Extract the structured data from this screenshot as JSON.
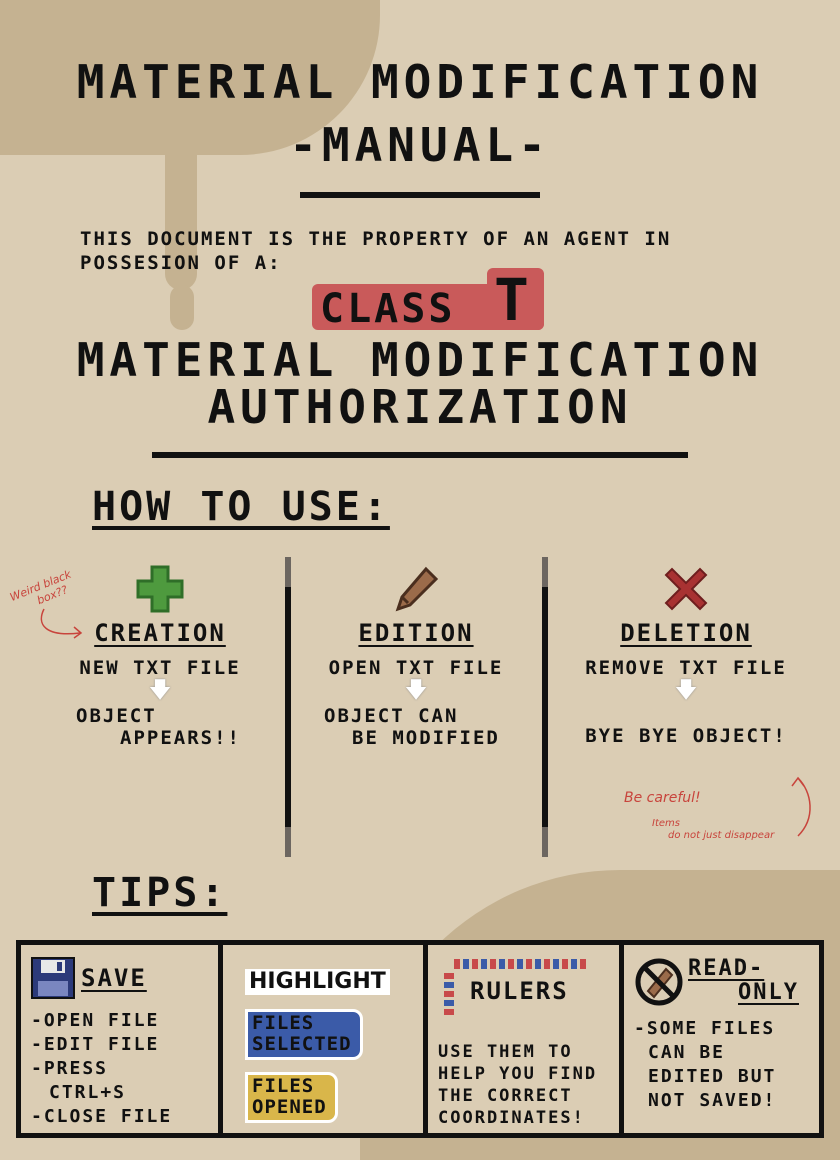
{
  "header": {
    "title_line1": "MATERIAL MODIFICATION",
    "title_line2": "-MANUAL-"
  },
  "property": {
    "line1": "THIS DOCUMENT IS THE PROPERTY OF AN AGENT IN",
    "line2": "POSSESION OF A:",
    "class_word": "CLASS",
    "class_letter": "T",
    "auth_line1": "MATERIAL MODIFICATION",
    "auth_line2": "AUTHORIZATION"
  },
  "how_to_use": {
    "heading": "HOW TO USE:",
    "columns": [
      {
        "icon": "green-plus-icon",
        "label": "CREATION",
        "line1": "NEW TXT FILE",
        "result1": "OBJECT",
        "result2": "APPEARS!!"
      },
      {
        "icon": "pencil-icon",
        "label": "EDITION",
        "line1": "OPEN TXT FILE",
        "result1": "OBJECT CAN",
        "result2": "BE MODIFIED"
      },
      {
        "icon": "red-x-icon",
        "label": "DELETION",
        "line1": "REMOVE TXT FILE",
        "result1": "",
        "result2": "BYE BYE OBJECT!"
      }
    ],
    "note_left1": "Weird black",
    "note_left2": "box??",
    "note_right1": "Be careful!",
    "note_right2": "Items",
    "note_right3": "do not just disappear"
  },
  "tips": {
    "heading": "TIPS:",
    "save": {
      "title": "SAVE",
      "items": [
        "-OPEN FILE",
        "-EDIT FILE",
        "-PRESS",
        "CTRL+S",
        "-CLOSE FILE"
      ]
    },
    "highlight": {
      "title": "HIGHLIGHT",
      "selected1": "FILES",
      "selected2": "SELECTED",
      "opened1": "FILES",
      "opened2": "OPENED"
    },
    "rulers": {
      "title": "RULERS",
      "lines": [
        "USE THEM TO",
        "HELP YOU FIND",
        "THE CORRECT",
        "COORDINATES!"
      ]
    },
    "readonly": {
      "title1": "READ-",
      "title2": "ONLY",
      "lines": [
        "-SOME FILES",
        "CAN BE",
        "EDITED BUT",
        "NOT SAVED!"
      ]
    }
  },
  "colors": {
    "background": "#dbcdb4",
    "stain": "#c5b291",
    "class_badge": "#c95a5a",
    "plus_green": "#4e9a3e",
    "x_red": "#a83232",
    "highlight_selected": "#3b5ba8",
    "highlight_opened": "#d9b64a"
  }
}
